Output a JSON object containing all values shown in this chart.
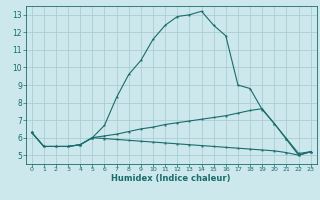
{
  "xlabel": "Humidex (Indice chaleur)",
  "ylabel": "",
  "bg_color": "#cce8ec",
  "grid_color": "#aacdd4",
  "line_color": "#1a6b6b",
  "xlim": [
    -0.5,
    23.5
  ],
  "ylim": [
    4.5,
    13.5
  ],
  "xticks": [
    0,
    1,
    2,
    3,
    4,
    5,
    6,
    7,
    8,
    9,
    10,
    11,
    12,
    13,
    14,
    15,
    16,
    17,
    18,
    19,
    20,
    21,
    22,
    23
  ],
  "yticks": [
    5,
    6,
    7,
    8,
    9,
    10,
    11,
    12,
    13
  ],
  "line1_x": [
    0,
    1,
    2,
    3,
    4,
    5,
    6,
    7,
    8,
    9,
    10,
    11,
    12,
    13,
    14,
    15,
    16,
    17,
    18,
    19,
    20,
    21,
    22,
    23
  ],
  "line1_y": [
    6.3,
    5.5,
    5.5,
    5.5,
    5.6,
    6.0,
    6.7,
    8.3,
    9.6,
    10.4,
    11.6,
    12.4,
    12.9,
    13.0,
    13.2,
    12.4,
    11.8,
    9.0,
    8.8,
    7.6,
    6.8,
    5.9,
    5.0,
    5.2
  ],
  "line2_x": [
    0,
    1,
    2,
    3,
    4,
    5,
    6,
    7,
    8,
    9,
    10,
    11,
    12,
    13,
    14,
    15,
    16,
    17,
    18,
    19,
    20,
    21,
    22,
    23
  ],
  "line2_y": [
    6.3,
    5.5,
    5.5,
    5.5,
    5.6,
    6.0,
    6.1,
    6.2,
    6.35,
    6.5,
    6.6,
    6.75,
    6.85,
    6.95,
    7.05,
    7.15,
    7.25,
    7.4,
    7.55,
    7.65,
    6.8,
    5.95,
    5.1,
    5.2
  ],
  "line3_x": [
    0,
    1,
    2,
    3,
    4,
    5,
    6,
    7,
    8,
    9,
    10,
    11,
    12,
    13,
    14,
    15,
    16,
    17,
    18,
    19,
    20,
    21,
    22,
    23
  ],
  "line3_y": [
    6.3,
    5.5,
    5.5,
    5.5,
    5.6,
    6.0,
    5.95,
    5.9,
    5.85,
    5.8,
    5.75,
    5.7,
    5.65,
    5.6,
    5.55,
    5.5,
    5.45,
    5.4,
    5.35,
    5.3,
    5.25,
    5.15,
    5.0,
    5.2
  ]
}
